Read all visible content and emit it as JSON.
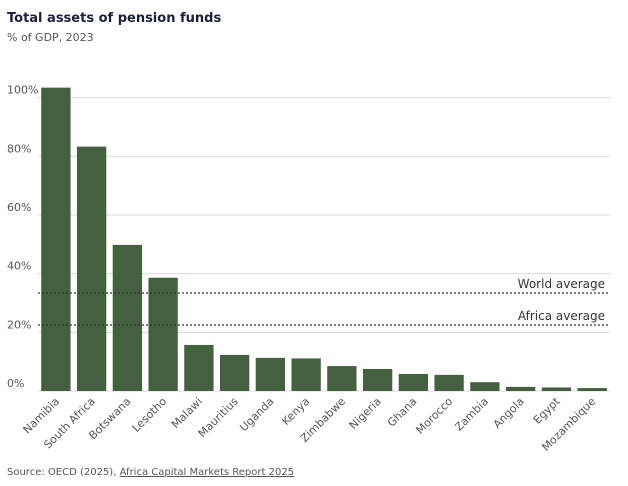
{
  "chart_data": {
    "type": "bar",
    "title": "Total assets of pension funds",
    "subtitle": "% of GDP, 2023",
    "categories": [
      "Namibia",
      "South Africa",
      "Botswana",
      "Lesotho",
      "Malawi",
      "Mauritius",
      "Uganda",
      "Kenya",
      "Zimbabwe",
      "Nigeria",
      "Ghana",
      "Morocco",
      "Zambia",
      "Angola",
      "Egypt",
      "Mozambique"
    ],
    "values": [
      103.4,
      83.3,
      49.8,
      38.6,
      15.7,
      12.3,
      11.3,
      11.1,
      8.5,
      7.5,
      5.8,
      5.5,
      3,
      1.4,
      1.2,
      1
    ],
    "color": "#44613f",
    "ylim": [
      0,
      106
    ],
    "yticks": [
      {
        "value": 0,
        "label": "0%"
      },
      {
        "value": 20,
        "label": "20%"
      },
      {
        "value": 40,
        "label": "40%"
      },
      {
        "value": 60,
        "label": "60%"
      },
      {
        "value": 80,
        "label": "80%"
      },
      {
        "value": 100,
        "label": "100%"
      }
    ],
    "grid": true,
    "reference_lines": [
      {
        "label": "World average",
        "value": 33.4
      },
      {
        "label": "Africa average",
        "value": 22.5
      }
    ],
    "source": {
      "text": "Source: OECD (2025),",
      "link": "Africa Capital Markets Report 2025"
    }
  }
}
